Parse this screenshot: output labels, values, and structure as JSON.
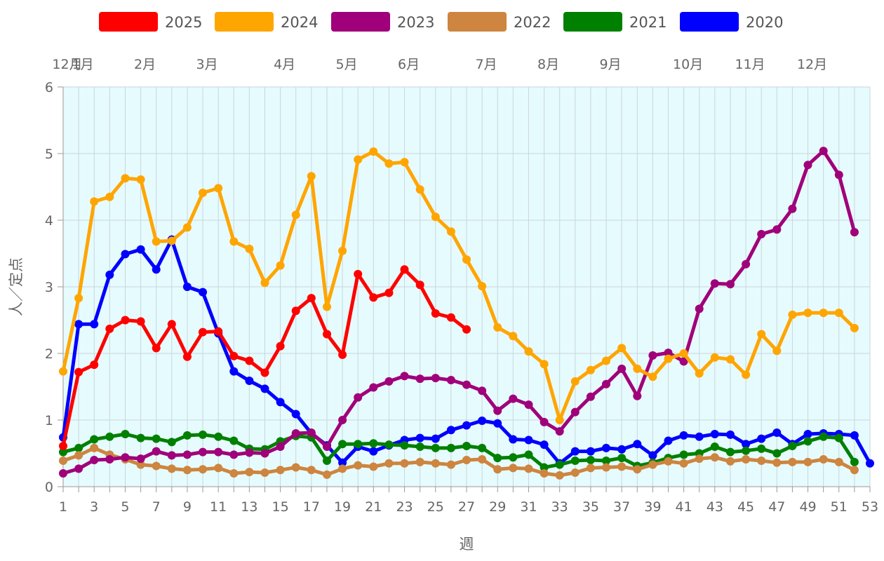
{
  "chart_data": {
    "type": "line",
    "xlabel": "週",
    "ylabel": "人／定点",
    "ylim": [
      0,
      6
    ],
    "yticks": [
      0,
      1,
      2,
      3,
      4,
      5,
      6
    ],
    "xlim": [
      1,
      53
    ],
    "xticks": [
      "1",
      "3",
      "5",
      "7",
      "9",
      "11",
      "13",
      "15",
      "17",
      "19",
      "21",
      "23",
      "25",
      "27",
      "29",
      "31",
      "33",
      "35",
      "37",
      "39",
      "41",
      "43",
      "45",
      "47",
      "49",
      "51",
      "53"
    ],
    "month_labels": [
      {
        "label": "12月",
        "week": 1
      },
      {
        "label": "1月",
        "week": 2
      },
      {
        "label": "2月",
        "week": 6
      },
      {
        "label": "3月",
        "week": 10
      },
      {
        "label": "4月",
        "week": 15
      },
      {
        "label": "5月",
        "week": 19
      },
      {
        "label": "6月",
        "week": 23
      },
      {
        "label": "7月",
        "week": 28
      },
      {
        "label": "8月",
        "week": 32
      },
      {
        "label": "9月",
        "week": 36
      },
      {
        "label": "10月",
        "week": 41
      },
      {
        "label": "11月",
        "week": 45
      },
      {
        "label": "12月",
        "week": 49
      }
    ],
    "background_color": "#e6fbfd",
    "grid": true,
    "legend_position": "top",
    "series": [
      {
        "name": "2025",
        "color": "#ff0000",
        "start_week": 1,
        "values": [
          0.61,
          1.72,
          1.83,
          2.37,
          2.5,
          2.48,
          2.08,
          2.44,
          1.95,
          2.32,
          2.33,
          1.96,
          1.89,
          1.71,
          2.11,
          2.64,
          2.83,
          2.29,
          1.98,
          3.19,
          2.84,
          2.91,
          3.26,
          3.03,
          2.6,
          2.54,
          2.36
        ]
      },
      {
        "name": "2024",
        "color": "#ffa500",
        "start_week": 1,
        "values": [
          1.73,
          2.83,
          4.28,
          4.35,
          4.63,
          4.61,
          3.68,
          3.69,
          3.89,
          4.41,
          4.48,
          3.68,
          3.57,
          3.06,
          3.32,
          4.08,
          4.66,
          2.7,
          3.54,
          4.91,
          5.03,
          4.85,
          4.87,
          4.46,
          4.05,
          3.83,
          3.41,
          3.01,
          2.39,
          2.26,
          2.03,
          1.84,
          1.0,
          1.58,
          1.75,
          1.89,
          2.08,
          1.77,
          1.65,
          1.92,
          2.0,
          1.7,
          1.94,
          1.91,
          1.68,
          2.29,
          2.04,
          2.58,
          2.61,
          2.61,
          2.61,
          2.38
        ]
      },
      {
        "name": "2023",
        "color": "#a0007a",
        "start_week": 1,
        "values": [
          0.2,
          0.27,
          0.4,
          0.41,
          0.44,
          0.42,
          0.53,
          0.47,
          0.48,
          0.52,
          0.52,
          0.48,
          0.51,
          0.5,
          0.6,
          0.8,
          0.81,
          0.6,
          1.0,
          1.34,
          1.49,
          1.58,
          1.66,
          1.62,
          1.63,
          1.6,
          1.53,
          1.44,
          1.14,
          1.32,
          1.23,
          0.97,
          0.83,
          1.12,
          1.35,
          1.54,
          1.77,
          1.36,
          1.97,
          2.01,
          1.88,
          2.67,
          3.05,
          3.04,
          3.34,
          3.79,
          3.86,
          4.17,
          4.83,
          5.04,
          4.68,
          3.82
        ]
      },
      {
        "name": "2022",
        "color": "#cd853f",
        "start_week": 1,
        "values": [
          0.39,
          0.47,
          0.58,
          0.48,
          0.41,
          0.33,
          0.31,
          0.27,
          0.25,
          0.26,
          0.28,
          0.2,
          0.22,
          0.21,
          0.25,
          0.29,
          0.25,
          0.18,
          0.27,
          0.32,
          0.3,
          0.35,
          0.35,
          0.37,
          0.35,
          0.33,
          0.4,
          0.41,
          0.26,
          0.28,
          0.27,
          0.2,
          0.17,
          0.21,
          0.28,
          0.29,
          0.3,
          0.26,
          0.33,
          0.38,
          0.35,
          0.42,
          0.44,
          0.38,
          0.41,
          0.39,
          0.36,
          0.37,
          0.37,
          0.41,
          0.37,
          0.25
        ]
      },
      {
        "name": "2021",
        "color": "#008000",
        "start_week": 1,
        "values": [
          0.52,
          0.58,
          0.71,
          0.75,
          0.79,
          0.73,
          0.72,
          0.67,
          0.77,
          0.78,
          0.75,
          0.69,
          0.57,
          0.56,
          0.68,
          0.76,
          0.74,
          0.39,
          0.64,
          0.64,
          0.65,
          0.63,
          0.62,
          0.6,
          0.58,
          0.58,
          0.61,
          0.58,
          0.43,
          0.44,
          0.48,
          0.29,
          0.33,
          0.39,
          0.4,
          0.39,
          0.43,
          0.31,
          0.36,
          0.43,
          0.48,
          0.5,
          0.6,
          0.52,
          0.54,
          0.57,
          0.5,
          0.61,
          0.68,
          0.75,
          0.73,
          0.37
        ]
      },
      {
        "name": "2020",
        "color": "#0000ff",
        "start_week": 1,
        "values": [
          0.74,
          2.44,
          2.44,
          3.18,
          3.49,
          3.56,
          3.26,
          3.71,
          3.0,
          2.92,
          2.3,
          1.73,
          1.59,
          1.47,
          1.27,
          1.09,
          0.8,
          0.62,
          0.36,
          0.6,
          0.53,
          0.62,
          0.7,
          0.73,
          0.72,
          0.85,
          0.92,
          0.99,
          0.95,
          0.71,
          0.7,
          0.63,
          0.35,
          0.53,
          0.53,
          0.58,
          0.56,
          0.64,
          0.47,
          0.69,
          0.77,
          0.75,
          0.79,
          0.78,
          0.64,
          0.72,
          0.81,
          0.64,
          0.79,
          0.8,
          0.79,
          0.77,
          0.35
        ]
      }
    ]
  }
}
